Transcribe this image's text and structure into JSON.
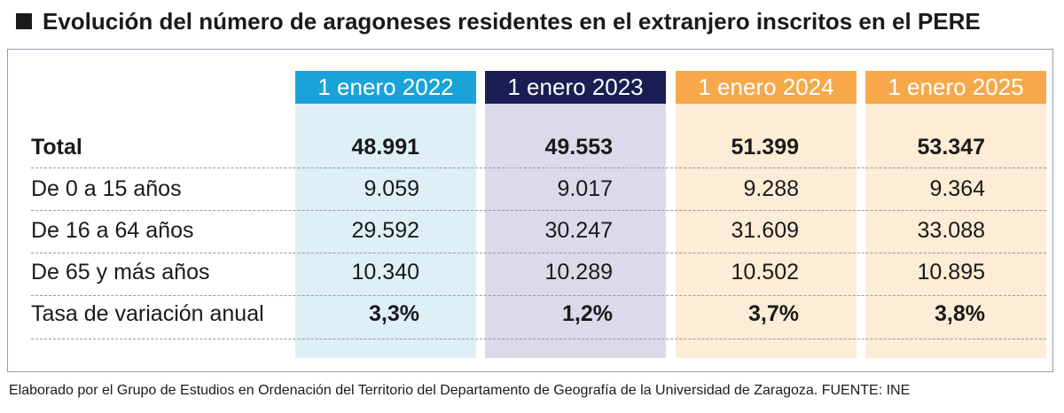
{
  "title": "Evolución del número de aragoneses residentes en el extranjero inscritos en el PERE",
  "chart_data": {
    "type": "table",
    "columns": [
      "1 enero 2022",
      "1 enero 2023",
      "1 enero 2024",
      "1 enero 2025"
    ],
    "rows": [
      {
        "label": "Total",
        "values": [
          "48.991",
          "49.553",
          "51.399",
          "53.347"
        ]
      },
      {
        "label": "De 0 a 15 años",
        "values": [
          "9.059",
          "9.017",
          "9.288",
          "9.364"
        ]
      },
      {
        "label": "De 16 a 64 años",
        "values": [
          "29.592",
          "30.247",
          "31.609",
          "33.088"
        ]
      },
      {
        "label": "De 65 y más años",
        "values": [
          "10.340",
          "10.289",
          "10.502",
          "10.895"
        ]
      },
      {
        "label": "Tasa de variación anual",
        "values": [
          "3,3%",
          "1,2%",
          "3,7%",
          "3,8%"
        ]
      }
    ],
    "colors": {
      "col_2022": "#19a3d9",
      "col_2023": "#1b1d55",
      "col_2024": "#f7a84a",
      "col_2025": "#f7a84a"
    }
  },
  "footer": "Elaborado por el Grupo de Estudios en Ordenación del Territorio del Departamento de Geografía de la Universidad de Zaragoza. FUENTE: INE"
}
